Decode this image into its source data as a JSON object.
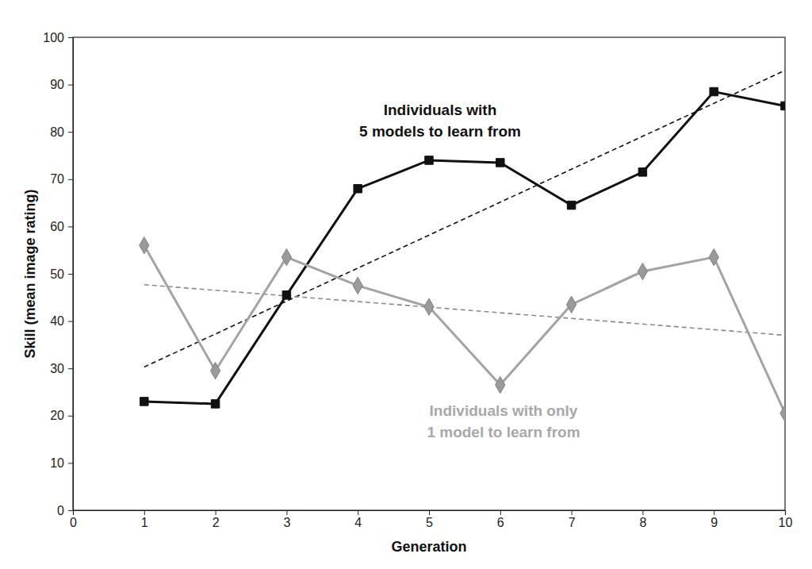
{
  "chart_data": {
    "type": "line",
    "x_label": "Generation",
    "y_label": "Skill (mean image rating)",
    "x": [
      1,
      2,
      3,
      4,
      5,
      6,
      7,
      8,
      9,
      10
    ],
    "xlim": [
      0,
      10
    ],
    "xticks": [
      0,
      1,
      2,
      3,
      4,
      5,
      6,
      7,
      8,
      9,
      10
    ],
    "ylim": [
      0,
      100
    ],
    "yticks": [
      0,
      10,
      20,
      30,
      40,
      50,
      60,
      70,
      80,
      90,
      100
    ],
    "grid": false,
    "series": [
      {
        "color": "#111111",
        "marker": "square",
        "line_style": "solid",
        "values": [
          23,
          22.5,
          45.5,
          68,
          74,
          73.5,
          64.5,
          71.5,
          88.5,
          85.5
        ]
      },
      {
        "color": "#a3a3a3",
        "marker": "diamond",
        "line_style": "solid",
        "values": [
          56,
          29.5,
          53.5,
          47.5,
          43,
          26.5,
          43.5,
          50.5,
          53.5,
          20.5
        ]
      },
      {
        "color": "#111111",
        "marker": "none",
        "line_style": "dashed",
        "x": [
          1,
          10
        ],
        "values": [
          30.3,
          93
        ]
      },
      {
        "color": "#8a8a8a",
        "marker": "none",
        "line_style": "dashed",
        "x": [
          1,
          10
        ],
        "values": [
          47.7,
          37
        ]
      }
    ],
    "annotations": [
      {
        "text": [
          "Individuals with",
          "5 models to learn from"
        ],
        "color": "#111111"
      },
      {
        "text": [
          "Individuals with only",
          "1 model to learn from"
        ],
        "color": "#a8a8a8"
      }
    ]
  }
}
